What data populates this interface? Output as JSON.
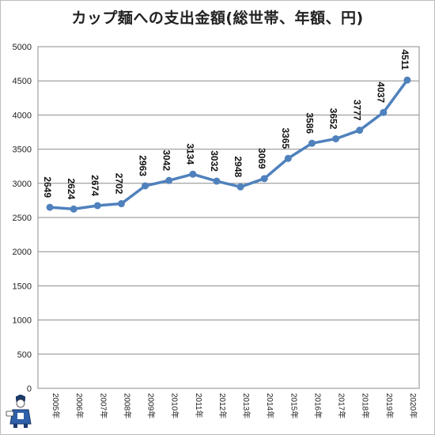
{
  "chart_data": {
    "type": "line",
    "title": "カップ麺への支出金額(総世帯、年額、円)",
    "xlabel": "",
    "ylabel": "",
    "categories": [
      "2005年",
      "2006年",
      "2007年",
      "2008年",
      "2009年",
      "2010年",
      "2011年",
      "2012年",
      "2013年",
      "2014年",
      "2015年",
      "2016年",
      "2017年",
      "2018年",
      "2019年",
      "2020年"
    ],
    "series": [
      {
        "values": [
          2649,
          2624,
          2674,
          2702,
          2963,
          3042,
          3134,
          3032,
          2948,
          3069,
          3365,
          3586,
          3652,
          3777,
          4037,
          4511
        ]
      }
    ],
    "ylim": [
      0,
      5000
    ],
    "yticks": [
      0,
      500,
      1000,
      1500,
      2000,
      2500,
      3000,
      3500,
      4000,
      4500,
      5000
    ],
    "grid": true,
    "legend": "none",
    "line_color": "#4f81bd",
    "grid_color": "#8c8c8c"
  }
}
